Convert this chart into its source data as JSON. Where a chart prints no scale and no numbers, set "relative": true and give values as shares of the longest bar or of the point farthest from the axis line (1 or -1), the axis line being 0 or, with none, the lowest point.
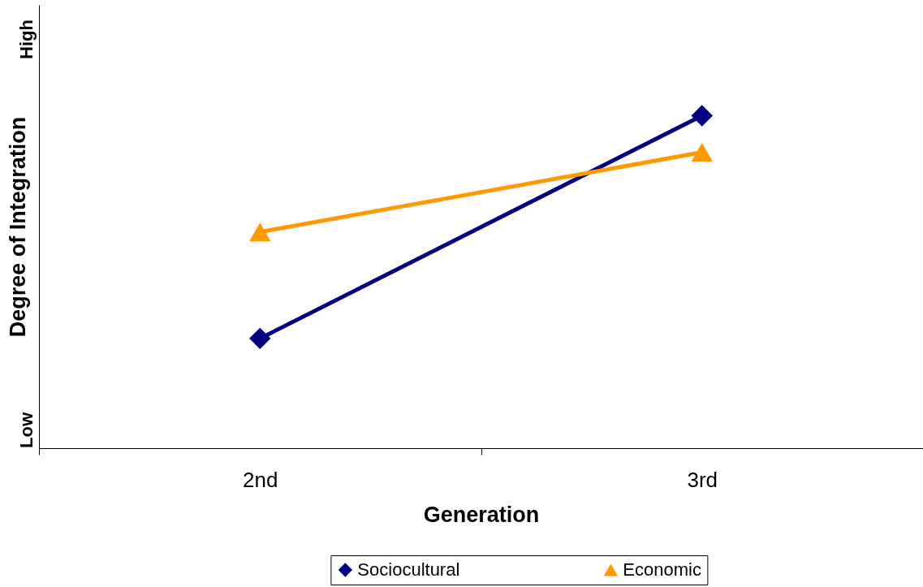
{
  "chart_data": {
    "type": "line",
    "xlabel": "Generation",
    "ylabel": "Degree of Integration",
    "annotations": [
      "Low",
      "High"
    ],
    "categories": [
      "2nd",
      "3rd"
    ],
    "relative": true,
    "series": [
      {
        "name": "Sociocultural",
        "color": "#000080",
        "marker": "diamond",
        "values": [
          0.33,
          1
        ]
      },
      {
        "name": "Economic",
        "color": "#ff9900",
        "marker": "triangle",
        "values": [
          0.65,
          0.89
        ]
      }
    ],
    "line_style": "solid",
    "legend": "bottom"
  }
}
